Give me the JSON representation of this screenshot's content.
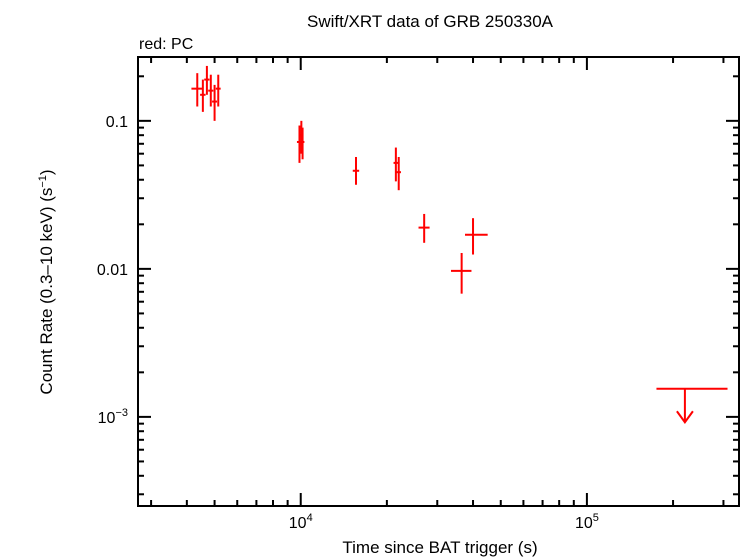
{
  "chart_data": {
    "type": "scatter",
    "title": "Swift/XRT data of GRB 250330A",
    "legend_text": "red: PC",
    "xlabel": "Time since BAT trigger (s)",
    "ylabel_main": "Count Rate (0.3–10 keV) (s",
    "ylabel_exp": "−1",
    "ylabel_end": ")",
    "x_scale": "log",
    "y_scale": "log",
    "xlim": [
      2700,
      340000
    ],
    "ylim": [
      0.00025,
      0.27
    ],
    "x_tick_labels": [
      {
        "value": 10000,
        "base": "10",
        "exp": "4"
      },
      {
        "value": 100000,
        "base": "10",
        "exp": "5"
      }
    ],
    "y_tick_labels": [
      {
        "value": 0.1,
        "label": "0.1"
      },
      {
        "value": 0.01,
        "label": "0.01"
      },
      {
        "value": 0.001,
        "base": "10",
        "exp": "−3"
      }
    ],
    "series": [
      {
        "color": "#ff0000",
        "points": [
          {
            "x": 4350,
            "xlo": 4150,
            "xhi": 4550,
            "y": 0.165,
            "ylo": 0.125,
            "yhi": 0.21
          },
          {
            "x": 4550,
            "xlo": 4450,
            "xhi": 4650,
            "y": 0.15,
            "ylo": 0.115,
            "yhi": 0.19
          },
          {
            "x": 4700,
            "xlo": 4600,
            "xhi": 4800,
            "y": 0.19,
            "ylo": 0.15,
            "yhi": 0.235
          },
          {
            "x": 4850,
            "xlo": 4750,
            "xhi": 4950,
            "y": 0.16,
            "ylo": 0.125,
            "yhi": 0.205
          },
          {
            "x": 5000,
            "xlo": 4900,
            "xhi": 5100,
            "y": 0.135,
            "ylo": 0.1,
            "yhi": 0.175
          },
          {
            "x": 5150,
            "xlo": 5050,
            "xhi": 5250,
            "y": 0.165,
            "ylo": 0.125,
            "yhi": 0.205
          },
          {
            "x": 9900,
            "xlo": 9700,
            "xhi": 10100,
            "y": 0.072,
            "ylo": 0.052,
            "yhi": 0.093
          },
          {
            "x": 10050,
            "xlo": 9900,
            "xhi": 10200,
            "y": 0.08,
            "ylo": 0.06,
            "yhi": 0.1
          },
          {
            "x": 10150,
            "xlo": 10050,
            "xhi": 10300,
            "y": 0.072,
            "ylo": 0.055,
            "yhi": 0.09
          },
          {
            "x": 15600,
            "xlo": 15200,
            "xhi": 16000,
            "y": 0.046,
            "ylo": 0.037,
            "yhi": 0.057
          },
          {
            "x": 21500,
            "xlo": 21100,
            "xhi": 21900,
            "y": 0.052,
            "ylo": 0.039,
            "yhi": 0.066
          },
          {
            "x": 22000,
            "xlo": 21600,
            "xhi": 22400,
            "y": 0.045,
            "ylo": 0.034,
            "yhi": 0.057
          },
          {
            "x": 27000,
            "xlo": 25800,
            "xhi": 28200,
            "y": 0.019,
            "ylo": 0.015,
            "yhi": 0.0235
          },
          {
            "x": 36500,
            "xlo": 33500,
            "xhi": 39500,
            "y": 0.0097,
            "ylo": 0.0068,
            "yhi": 0.0128
          },
          {
            "x": 40000,
            "xlo": 37500,
            "xhi": 45000,
            "y": 0.017,
            "ylo": 0.0125,
            "yhi": 0.022
          }
        ],
        "upper_limits": [
          {
            "x": 220000,
            "xlo": 175000,
            "xhi": 310000,
            "y": 0.00155,
            "arrow_to": 0.00092
          }
        ]
      }
    ]
  }
}
